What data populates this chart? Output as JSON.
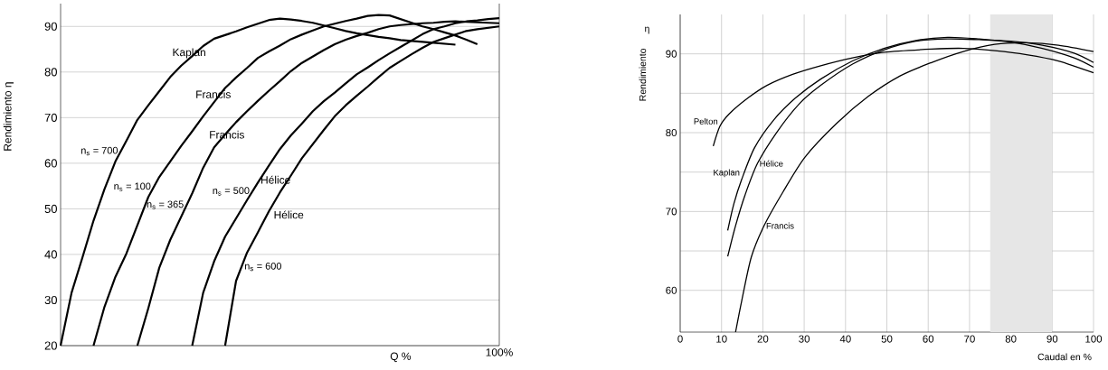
{
  "chart_data": [
    {
      "type": "line",
      "ylabel": "Rendimiento η",
      "xlabel": "Q %",
      "ylim": [
        20,
        95
      ],
      "yticks": [
        20,
        30,
        40,
        50,
        60,
        70,
        80,
        90
      ],
      "grid": "y",
      "categories": [
        null,
        null,
        null,
        null,
        null,
        null,
        null,
        null,
        null,
        null,
        null,
        null,
        null,
        null,
        null,
        null,
        null,
        null,
        null,
        null,
        null,
        null,
        null,
        null,
        null,
        null,
        null,
        null,
        null,
        null,
        null,
        null,
        null,
        null,
        null,
        null,
        null,
        null,
        null,
        null,
        null
      ],
      "annotations": [
        "100%",
        "Kaplan",
        "Francis",
        "Francis",
        "Hélice",
        "Hélice"
      ],
      "series": [
        {
          "name": "n$_{s}$ = 700",
          "color": "#000000",
          "values": [
            20,
            31.6,
            39.4,
            47.4,
            54.3,
            60.4,
            64.9,
            69.5,
            72.7,
            75.8,
            78.9,
            81.4,
            83.5,
            85.7,
            87.3,
            88.1,
            88.9,
            89.8,
            90.6,
            91.4,
            91.7,
            91.5,
            91.2,
            90.8,
            90.2,
            89.6,
            89.0,
            88.5,
            88.1,
            87.7,
            87.4,
            87.0,
            86.8,
            86.6,
            86.4,
            86.2,
            86.0,
            null,
            null,
            null,
            null
          ]
        },
        {
          "name": "n$_{s}$ = 100",
          "color": "#000000",
          "values": [
            null,
            null,
            null,
            20,
            28.5,
            35.1,
            40.2,
            46.4,
            52.6,
            57.0,
            60.4,
            63.8,
            67.0,
            70.3,
            73.4,
            76.5,
            78.8,
            80.9,
            83.1,
            84.5,
            85.8,
            87.2,
            88.2,
            89.1,
            90.0,
            90.6,
            91.2,
            91.7,
            92.3,
            92.5,
            92.4,
            91.6,
            90.8,
            90.0,
            89.4,
            88.7,
            88.0,
            87.1,
            86.1,
            null,
            null
          ]
        },
        {
          "name": "n$_{s}$ = 365",
          "color": "#000000",
          "values": [
            null,
            null,
            null,
            null,
            null,
            null,
            null,
            20,
            28.2,
            37.1,
            43.2,
            48.3,
            53.4,
            59.0,
            63.5,
            66.3,
            69.0,
            71.4,
            73.7,
            75.9,
            78.0,
            80.2,
            82.0,
            83.4,
            84.8,
            86.1,
            87.1,
            87.9,
            88.6,
            89.4,
            90.0,
            90.3,
            90.5,
            90.7,
            90.8,
            91.0,
            91.1,
            91.0,
            90.9,
            90.8,
            90.7
          ]
        },
        {
          "name": "n$_{s}$ = 500",
          "color": "#000000",
          "values": [
            null,
            null,
            null,
            null,
            null,
            null,
            null,
            null,
            null,
            null,
            null,
            null,
            20,
            31.6,
            38.5,
            43.9,
            47.9,
            51.9,
            55.8,
            59.5,
            63.1,
            66.1,
            68.7,
            71.4,
            73.6,
            75.5,
            77.5,
            79.5,
            81.0,
            82.6,
            84.1,
            85.5,
            86.9,
            88.3,
            89.4,
            90.0,
            90.7,
            91.1,
            91.3,
            91.6,
            91.8
          ]
        },
        {
          "name": "n$_{s}$ = 600",
          "color": "#000000",
          "values": [
            null,
            null,
            null,
            null,
            null,
            null,
            null,
            null,
            null,
            null,
            null,
            null,
            null,
            null,
            null,
            20,
            34.2,
            40.4,
            44.9,
            49.5,
            53.6,
            57.3,
            61.1,
            64.2,
            67.3,
            70.3,
            72.7,
            74.8,
            76.8,
            78.9,
            80.9,
            82.4,
            83.9,
            85.3,
            86.6,
            87.4,
            88.2,
            89.0,
            89.4,
            89.7,
            90.0
          ]
        }
      ]
    },
    {
      "type": "line",
      "ylabel": "Rendimiento",
      "xlabel": "Caudal en %",
      "annotations": [
        "η"
      ],
      "xlim": [
        0,
        100
      ],
      "xticks": [
        0,
        10,
        20,
        30,
        40,
        50,
        60,
        70,
        80,
        90,
        100
      ],
      "ylim": [
        54.7,
        95
      ],
      "yticks": [
        60,
        {
          "value": 65,
          "label": null
        },
        70,
        {
          "value": 75,
          "label": null
        },
        80,
        {
          "value": 85,
          "label": null
        },
        90
      ],
      "grid": true,
      "bands": [
        {
          "axis": "x",
          "from": 75,
          "to": 90,
          "color": "#e6e6e6"
        }
      ],
      "series": [
        {
          "name": "Pelton",
          "color": "#000000",
          "x": [
            8,
            9.6,
            11.9,
            16.4,
            21,
            27.2,
            34,
            41.7,
            49.3,
            60.8,
            68.5,
            76.1,
            83.8,
            91.5,
            100
          ],
          "values": [
            78.3,
            80.8,
            82.4,
            84.4,
            86,
            87.4,
            88.5,
            89.5,
            90.2,
            90.6,
            90.7,
            90.4,
            89.9,
            89.1,
            87.6
          ]
        },
        {
          "name": "Kaplan",
          "color": "#000000",
          "x": [
            11.5,
            13,
            14.9,
            18,
            22.6,
            27.9,
            34,
            41.7,
            49.3,
            57,
            64.7,
            72.3,
            80,
            87.6,
            95.3,
            100
          ],
          "values": [
            67.6,
            71,
            74.1,
            78.1,
            81.6,
            84.4,
            86.8,
            89.1,
            90.7,
            91.7,
            92.1,
            91.9,
            91.5,
            90.7,
            89.5,
            88.3
          ]
        },
        {
          "name": "Hélice",
          "color": "#000000",
          "x": [
            11.5,
            13.4,
            15.7,
            18.7,
            23.3,
            28.7,
            34,
            41.7,
            49.3,
            57,
            64.7,
            72.3,
            80,
            87.6,
            95.3,
            100
          ],
          "values": [
            64.3,
            68.2,
            72.1,
            76.1,
            80,
            83.6,
            86,
            88.7,
            90.5,
            91.6,
            91.9,
            91.8,
            91.6,
            91.1,
            90.1,
            88.9
          ]
        },
        {
          "name": "Francis",
          "color": "#000000",
          "x": [
            13.4,
            14.9,
            17.2,
            20.3,
            24.9,
            30.2,
            37.9,
            45.5,
            53.2,
            60.8,
            68.5,
            76.1,
            83.8,
            91.5,
            100
          ],
          "values": [
            54.7,
            58.7,
            64.2,
            68.2,
            72.5,
            76.9,
            81.2,
            84.6,
            87.2,
            88.9,
            90.3,
            91.2,
            91.4,
            91.1,
            90.3
          ]
        }
      ]
    }
  ]
}
